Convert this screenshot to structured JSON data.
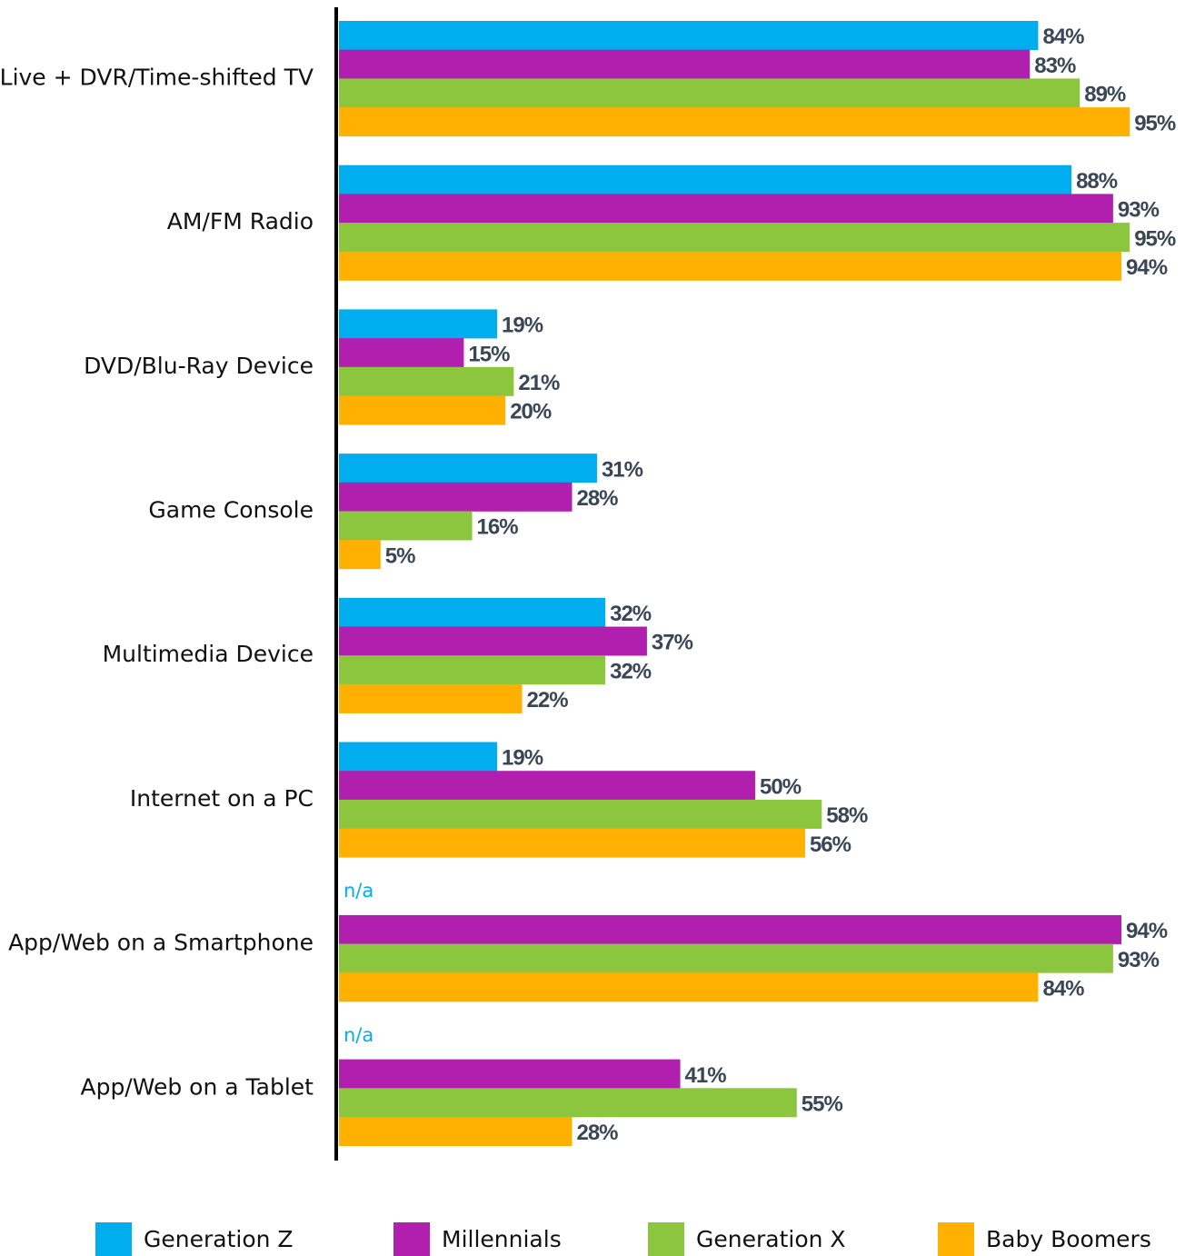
{
  "chart_data": {
    "type": "bar",
    "orientation": "horizontal",
    "categories": [
      "Live + DVR/Time-shifted TV",
      "AM/FM Radio",
      "DVD/Blu-Ray Device",
      "Game Console",
      "Multimedia Device",
      "Internet on a PC",
      "App/Web on a Smartphone",
      "App/Web on a Tablet"
    ],
    "xlim": [
      0,
      100
    ],
    "series": [
      {
        "name": "Generation Z",
        "color": "#00aeef",
        "values": [
          84,
          88,
          19,
          31,
          32,
          19,
          null,
          null
        ],
        "value_labels": [
          "84%",
          "88%",
          "19%",
          "31%",
          "32%",
          "19%",
          "n/a",
          "n/a"
        ]
      },
      {
        "name": "Millennials",
        "color": "#b01fad",
        "values": [
          83,
          93,
          15,
          28,
          37,
          50,
          94,
          41
        ],
        "value_labels": [
          "83%",
          "93%",
          "15%",
          "28%",
          "37%",
          "50%",
          "94%",
          "41%"
        ]
      },
      {
        "name": "Generation X",
        "color": "#8cc63f",
        "values": [
          89,
          95,
          21,
          16,
          32,
          58,
          93,
          55
        ],
        "value_labels": [
          "89%",
          "95%",
          "21%",
          "16%",
          "32%",
          "58%",
          "93%",
          "55%"
        ]
      },
      {
        "name": "Baby Boomers",
        "color": "#ffb000",
        "values": [
          95,
          94,
          20,
          5,
          22,
          56,
          84,
          28
        ],
        "value_labels": [
          "95%",
          "94%",
          "20%",
          "5%",
          "22%",
          "56%",
          "84%",
          "28%"
        ]
      }
    ],
    "legend": "bottom"
  }
}
